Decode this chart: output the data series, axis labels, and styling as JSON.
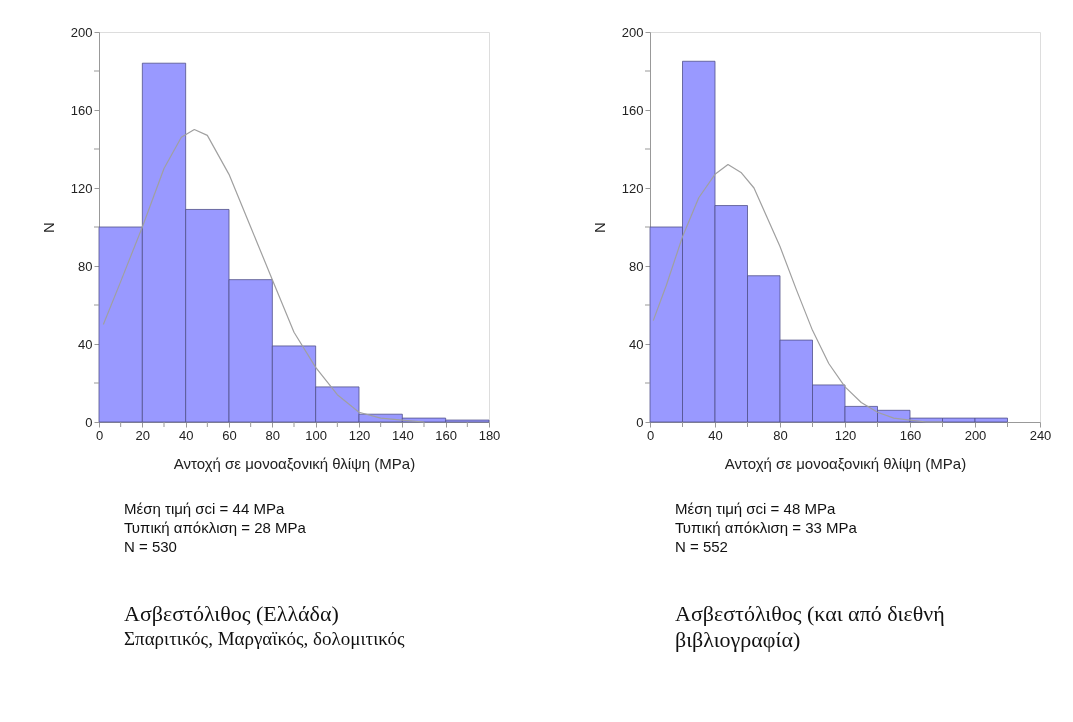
{
  "chart_data": [
    {
      "type": "histogram",
      "title": "Ασβεστόλιθος (Ελλάδα)",
      "subtitle": "Σπαριτικός, Μαργαϊκός, δολομιτικός",
      "xlabel": "Αντοχή σε μονοαξονική θλίψη (MPa)",
      "ylabel": "N",
      "bins": [
        0,
        20,
        40,
        60,
        80,
        100,
        120,
        140,
        160,
        180
      ],
      "values": [
        100,
        184,
        109,
        73,
        39,
        18,
        4,
        2,
        1
      ],
      "color": "#9999ff",
      "series": [
        {
          "type": "line",
          "color": "#a0a0a0",
          "x": [
            2,
            10,
            20,
            30,
            38,
            44,
            50,
            60,
            70,
            80,
            90,
            100,
            110,
            120,
            130,
            140,
            150
          ],
          "values": [
            50,
            72,
            100,
            130,
            146,
            150,
            147,
            127,
            100,
            73,
            46,
            28,
            14,
            5,
            2,
            1,
            0
          ]
        }
      ],
      "xlim": [
        0,
        180
      ],
      "xticks": [
        0,
        {
          "value": 10,
          "label": null
        },
        20,
        {
          "value": 30,
          "label": null
        },
        40,
        {
          "value": 50,
          "label": null
        },
        60,
        {
          "value": 70,
          "label": null
        },
        80,
        {
          "value": 90,
          "label": null
        },
        100,
        {
          "value": 110,
          "label": null
        },
        120,
        {
          "value": 130,
          "label": null
        },
        140,
        {
          "value": 150,
          "label": null
        },
        160,
        {
          "value": 170,
          "label": null
        },
        180
      ],
      "ylim": [
        0,
        200
      ],
      "yticks": [
        0,
        {
          "value": 20,
          "label": null
        },
        40,
        {
          "value": 60,
          "label": null
        },
        80,
        {
          "value": 100,
          "label": null
        },
        120,
        {
          "value": 140,
          "label": null
        },
        160,
        {
          "value": 180,
          "label": null
        },
        200
      ],
      "annotations": [
        "Μέση τιμή σci = 44 MPa",
        "Τυπική απόκλιση = 28 MPa",
        "N = 530"
      ]
    },
    {
      "type": "histogram",
      "title": "Ασβεστόλιθος (και από διεθνή βιβλιογραφία)",
      "xlabel": "Αντοχή σε μονοαξονική θλίψη (MPa)",
      "ylabel": "N",
      "bins": [
        0,
        20,
        40,
        60,
        80,
        100,
        120,
        140,
        160,
        180,
        200,
        220
      ],
      "values": [
        100,
        185,
        111,
        75,
        42,
        19,
        8,
        6,
        2,
        2,
        2
      ],
      "color": "#9999ff",
      "series": [
        {
          "type": "line",
          "color": "#a0a0a0",
          "x": [
            2,
            10,
            20,
            30,
            40,
            48,
            56,
            64,
            72,
            80,
            90,
            100,
            110,
            120,
            130,
            140,
            150,
            160,
            170,
            180
          ],
          "values": [
            52,
            70,
            95,
            115,
            127,
            132,
            128,
            120,
            105,
            90,
            68,
            47,
            30,
            18,
            10,
            5,
            2,
            1,
            0,
            0
          ]
        }
      ],
      "xlim": [
        0,
        240
      ],
      "xticks": [
        0,
        {
          "value": 20,
          "label": null
        },
        40,
        {
          "value": 60,
          "label": null
        },
        80,
        {
          "value": 100,
          "label": null
        },
        120,
        {
          "value": 140,
          "label": null
        },
        160,
        {
          "value": 180,
          "label": null
        },
        200,
        {
          "value": 220,
          "label": null
        },
        240
      ],
      "ylim": [
        0,
        200
      ],
      "yticks": [
        0,
        {
          "value": 20,
          "label": null
        },
        40,
        {
          "value": 60,
          "label": null
        },
        80,
        {
          "value": 100,
          "label": null
        },
        120,
        {
          "value": 140,
          "label": null
        },
        160,
        {
          "value": 180,
          "label": null
        },
        200
      ],
      "annotations": [
        "Μέση τιμή σci = 48 MPa",
        "Τυπική απόκλιση = 33 MPa",
        "N = 552"
      ]
    }
  ]
}
